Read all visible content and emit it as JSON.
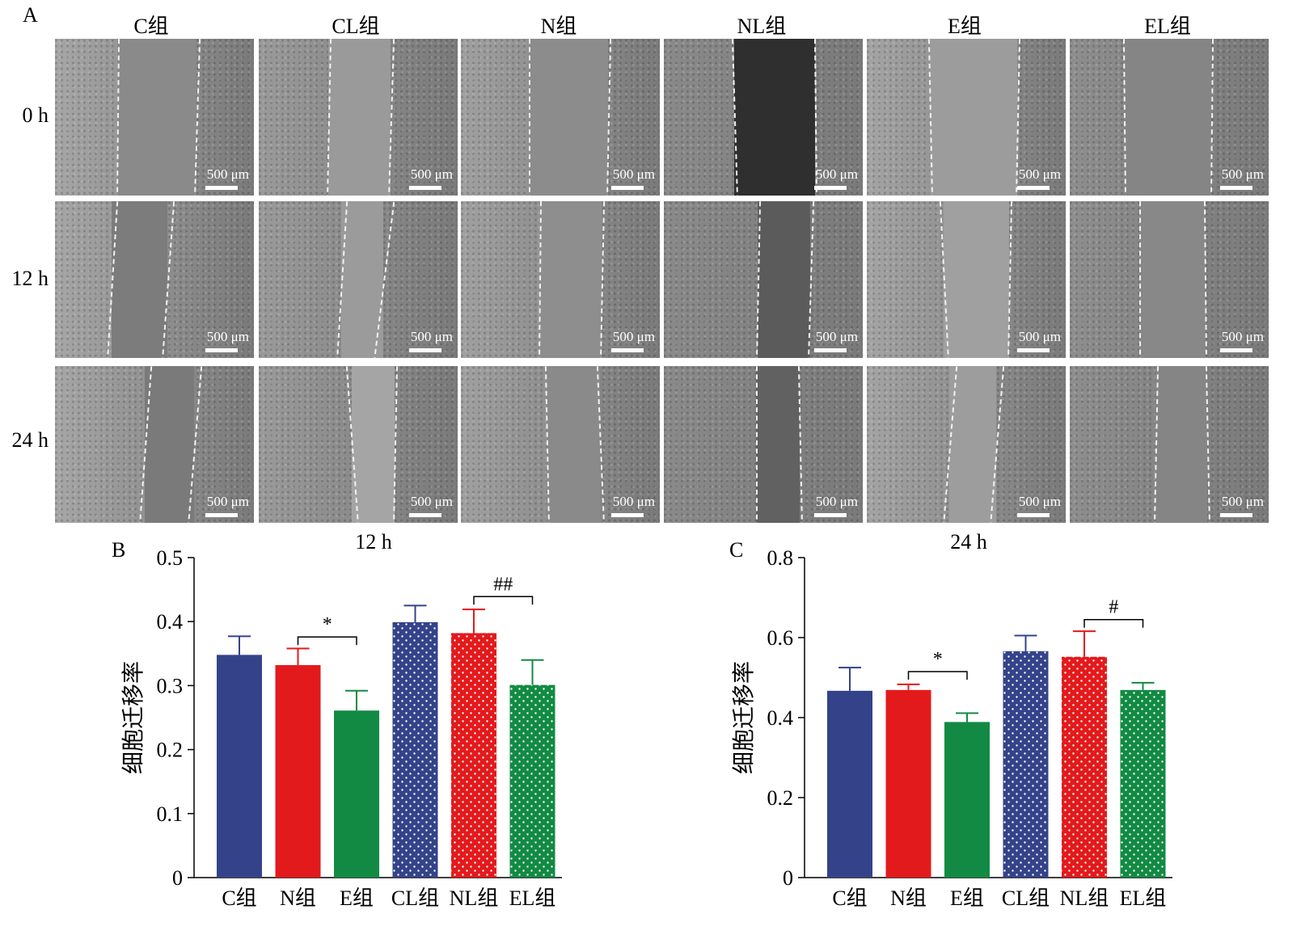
{
  "panel_a": {
    "letter": "A",
    "columns": [
      "C组",
      "CL组",
      "N组",
      "NL组",
      "E组",
      "EL组"
    ],
    "rows": [
      "0 h",
      "12 h",
      "24 h"
    ],
    "scale_bar": "500 μm"
  },
  "colors": {
    "blue": "#344389",
    "red": "#e31a1c",
    "green": "#128a43",
    "dot": "#ffffff"
  },
  "chart_data": [
    {
      "panel": "B",
      "type": "bar",
      "title": "12 h",
      "xlabel": "",
      "ylabel": "细胞迁移率",
      "ylim": [
        0,
        0.5
      ],
      "yticks": [
        "0",
        "0.1",
        "0.2",
        "0.3",
        "0.4",
        "0.5"
      ],
      "categories": [
        "C组",
        "N组",
        "E组",
        "CL组",
        "NL组",
        "EL组"
      ],
      "values": [
        0.348,
        0.332,
        0.261,
        0.399,
        0.382,
        0.301
      ],
      "errors": [
        0.029,
        0.026,
        0.031,
        0.026,
        0.037,
        0.039
      ],
      "bar_colors": [
        "blue",
        "red",
        "green",
        "blue",
        "red",
        "green"
      ],
      "dotted": [
        false,
        false,
        false,
        true,
        true,
        true
      ],
      "annotations": [
        {
          "from": 1,
          "to": 2,
          "y": 0.376,
          "label": "*"
        },
        {
          "from": 4,
          "to": 5,
          "y": 0.439,
          "label": "##"
        }
      ]
    },
    {
      "panel": "C",
      "type": "bar",
      "title": "24 h",
      "xlabel": "",
      "ylabel": "细胞迁移率",
      "ylim": [
        0,
        0.8
      ],
      "yticks": [
        "0",
        "0.2",
        "0.4",
        "0.6",
        "0.8"
      ],
      "categories": [
        "C组",
        "N组",
        "E组",
        "CL组",
        "NL组",
        "EL组"
      ],
      "values": [
        0.467,
        0.469,
        0.389,
        0.566,
        0.552,
        0.469
      ],
      "errors": [
        0.058,
        0.014,
        0.022,
        0.039,
        0.064,
        0.018
      ],
      "bar_colors": [
        "blue",
        "red",
        "green",
        "blue",
        "red",
        "green"
      ],
      "dotted": [
        false,
        false,
        false,
        true,
        true,
        true
      ],
      "annotations": [
        {
          "from": 1,
          "to": 2,
          "y": 0.515,
          "label": "*"
        },
        {
          "from": 4,
          "to": 5,
          "y": 0.645,
          "label": "#"
        }
      ]
    }
  ]
}
